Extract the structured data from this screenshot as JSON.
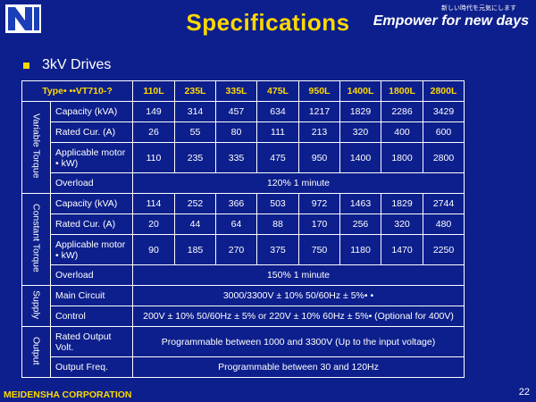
{
  "header": {
    "title": "Specifications",
    "tagline_small": "新しい時代を元気にします",
    "tagline": "Empower for new days"
  },
  "bullet": {
    "text": "3kV Drives"
  },
  "table": {
    "type_label": "Type• ••VT710-?",
    "models": [
      "110L",
      "235L",
      "335L",
      "475L",
      "950L",
      "1400L",
      "1800L",
      "2800L"
    ],
    "sections": {
      "variable_torque": "Variable Torque",
      "constant_torque": "Constant Torque",
      "supply": "Supply",
      "output": "Output"
    },
    "variable": {
      "capacity_label": "Capacity (kVA)",
      "capacity": [
        "149",
        "314",
        "457",
        "634",
        "1217",
        "1829",
        "2286",
        "3429"
      ],
      "rated_label": "Rated Cur. (A)",
      "rated": [
        "26",
        "55",
        "80",
        "111",
        "213",
        "320",
        "400",
        "600"
      ],
      "motor_label": "Applicable motor • kW)",
      "motor": [
        "110",
        "235",
        "335",
        "475",
        "950",
        "1400",
        "1800",
        "2800"
      ],
      "overload_label": "Overload",
      "overload": "120% 1 minute"
    },
    "constant": {
      "capacity_label": "Capacity (kVA)",
      "capacity": [
        "114",
        "252",
        "366",
        "503",
        "972",
        "1463",
        "1829",
        "2744"
      ],
      "rated_label": "Rated Cur. (A)",
      "rated": [
        "20",
        "44",
        "64",
        "88",
        "170",
        "256",
        "320",
        "480"
      ],
      "motor_label": "Applicable motor • kW)",
      "motor": [
        "90",
        "185",
        "270",
        "375",
        "750",
        "1180",
        "1470",
        "2250"
      ],
      "overload_label": "Overload",
      "overload": "150% 1 minute"
    },
    "supply": {
      "main_label": "Main Circuit",
      "main": "3000/3300V ± 10% 50/60Hz ±  5%•  •",
      "control_label": "Control",
      "control": "200V ± 10% 50/60Hz ±  5% or 220V ± 10% 60Hz ± 5%• (Optional for 400V)"
    },
    "output": {
      "rated_label": "Rated Output Volt.",
      "rated": "Programmable between 1000 and 3300V (Up to the input voltage)",
      "freq_label": "Output Freq.",
      "freq": "Programmable between 30 and 120Hz"
    }
  },
  "footer": {
    "company": "MEIDENSHA CORPORATION",
    "page": "22"
  }
}
